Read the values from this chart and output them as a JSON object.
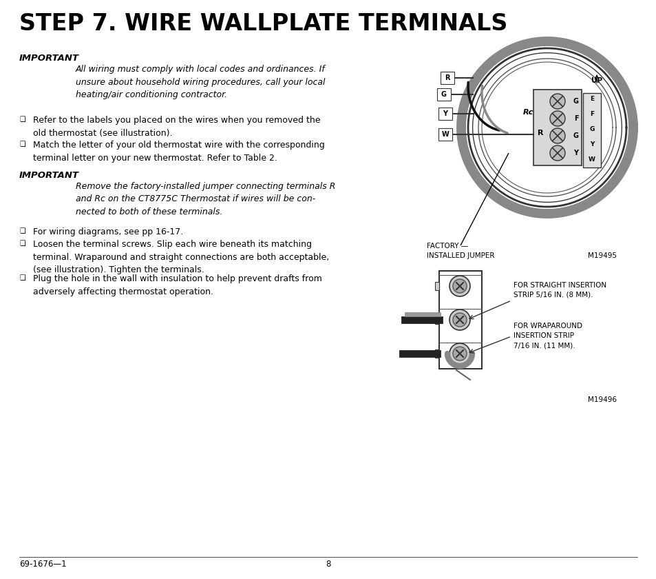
{
  "bg_color": "#ffffff",
  "title": "STEP 7. WIRE WALLPLATE TERMINALS",
  "title_fontsize": 24,
  "important1_label": "IMPORTANT",
  "important1_text": "All wiring must comply with local codes and ordinances. If\nunsure about household wiring procedures, call your local\nheating/air conditioning contractor.",
  "bullet1": "Refer to the labels you placed on the wires when you removed the\nold thermostat (see illustration).",
  "bullet2": "Match the letter of your old thermostat wire with the corresponding\nterminal letter on your new thermostat. Refer to Table 2.",
  "important2_label": "IMPORTANT",
  "important2_text": "Remove the factory-installed jumper connecting terminals R\nand Rc on the CT8775C Thermostat if wires will be con-\nnected to both of these terminals.",
  "bullet3": "For wiring diagrams, see pp 16-17.",
  "bullet4": "Loosen the terminal screws. Slip each wire beneath its matching\nterminal. Wraparound and straight connections are both acceptable,\n(see illustration). Tighten the terminals.",
  "bullet5": "Plug the hole in the wall with insulation to help prevent drafts from\nadversely affecting thermostat operation.",
  "footer_left": "69-1676—1",
  "footer_center": "8",
  "fig1_label_line1": "FACTORY —",
  "fig1_label_line2": "INSTALLED JUMPER",
  "fig1_code": "M19495",
  "fig2_label1": "FOR STRAIGHT INSERTION\nSTRIP 5/16 IN. (8 MM).",
  "fig2_label2": "FOR WRAPAROUND\nINSERTION STRIP\n7/16 IN. (11 MM).",
  "fig2_code": "M19496"
}
